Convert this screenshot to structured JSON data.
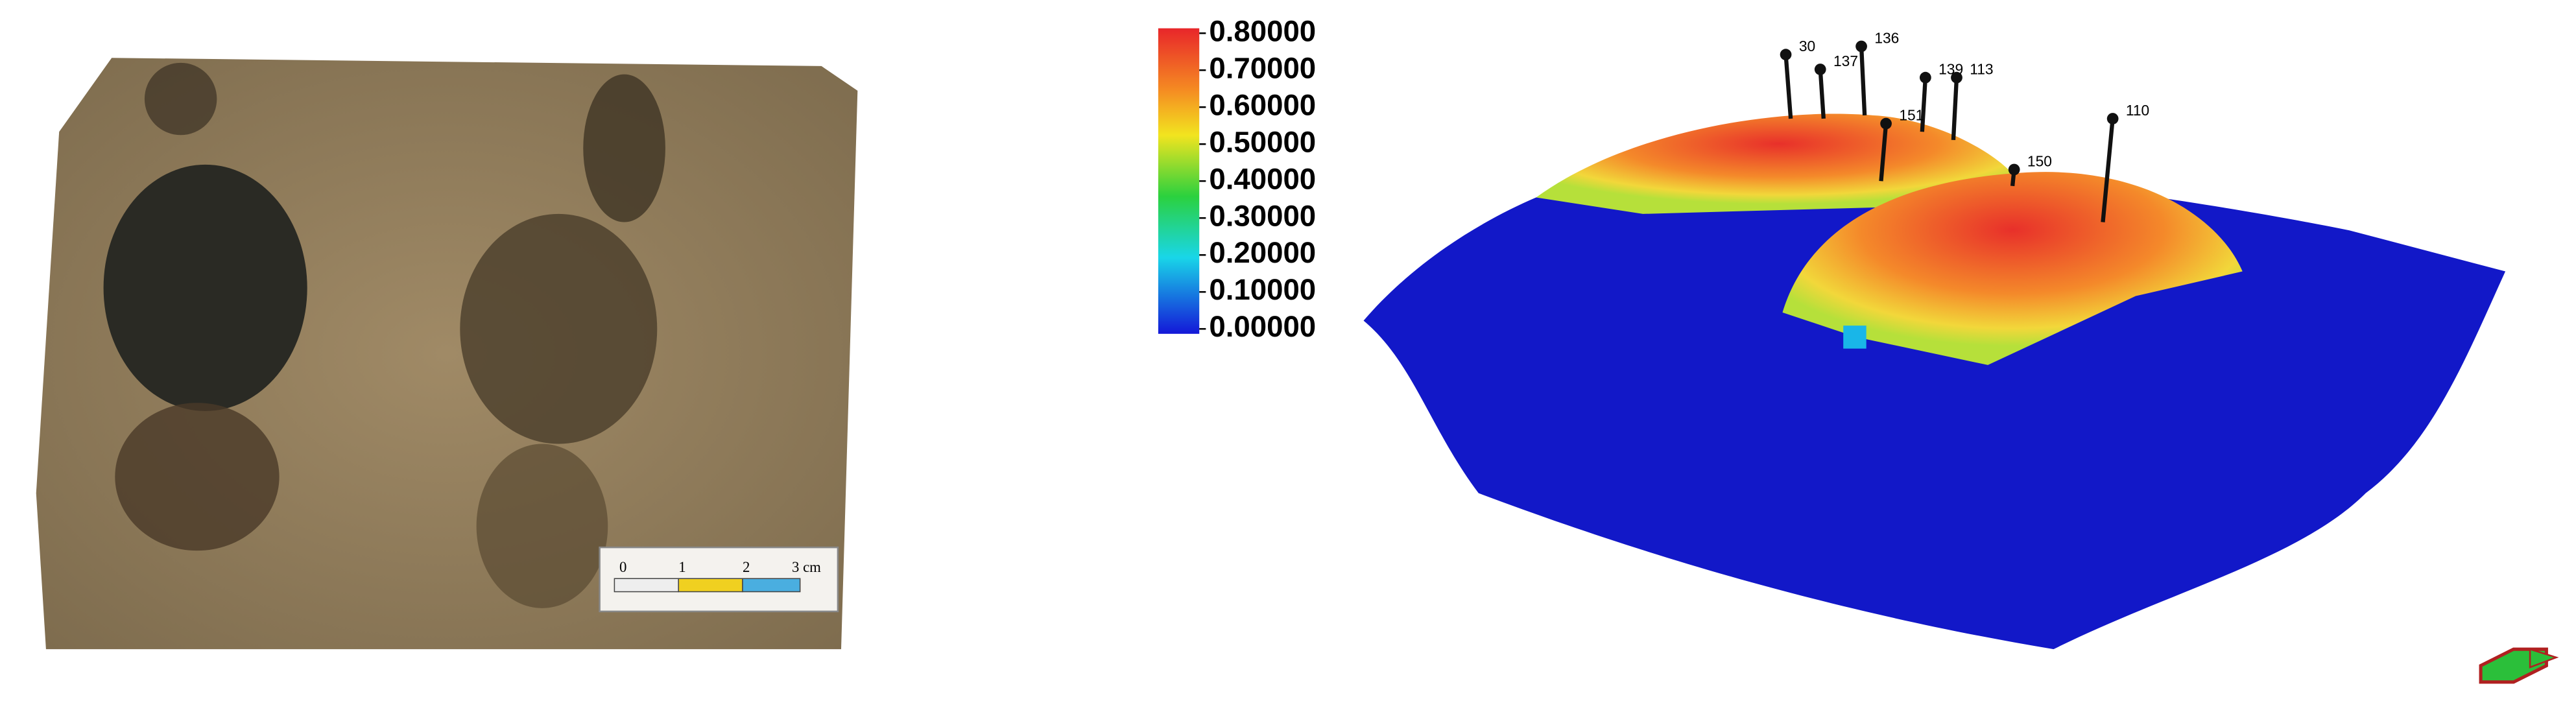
{
  "scale_bar": {
    "ticks": [
      "0",
      "1",
      "2",
      "3 cm"
    ]
  },
  "colorbar": {
    "ticks": [
      {
        "value": 0.8,
        "label": "0.80000"
      },
      {
        "value": 0.7,
        "label": "0.70000"
      },
      {
        "value": 0.6,
        "label": "0.60000"
      },
      {
        "value": 0.5,
        "label": "0.50000"
      },
      {
        "value": 0.4,
        "label": "0.40000"
      },
      {
        "value": 0.3,
        "label": "0.30000"
      },
      {
        "value": 0.2,
        "label": "0.20000"
      },
      {
        "value": 0.1,
        "label": "0.10000"
      },
      {
        "value": 0,
        "label": "0.00000"
      }
    ]
  },
  "wells": [
    {
      "label": "30"
    },
    {
      "label": "137"
    },
    {
      "label": "136"
    },
    {
      "label": "139"
    },
    {
      "label": "113"
    },
    {
      "label": "151"
    },
    {
      "label": "150"
    },
    {
      "label": "110"
    }
  ]
}
